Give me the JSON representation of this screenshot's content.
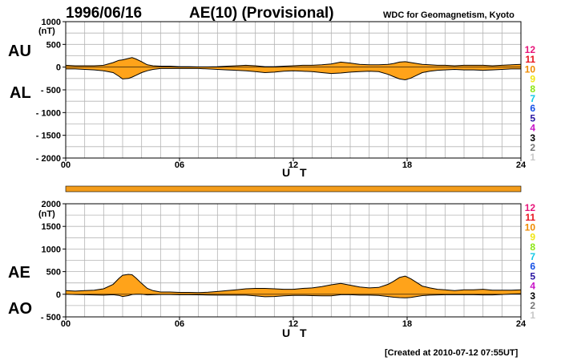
{
  "header": {
    "date": "1996/06/16",
    "title": "AE(10) (Provisional)",
    "source": "WDC for Geomagnetism, Kyoto"
  },
  "footer": {
    "created": "[Created at 2010-07-12 07:55UT]"
  },
  "colors": {
    "fill": "#ffa31a",
    "line": "#000000",
    "grid": "#b4b4b4",
    "bar": "#f39c1a"
  },
  "station_legend": [
    {
      "label": "12",
      "color": "#e8157a"
    },
    {
      "label": "11",
      "color": "#e8141e"
    },
    {
      "label": "10",
      "color": "#f08c00"
    },
    {
      "label": "9",
      "color": "#f0e614"
    },
    {
      "label": "8",
      "color": "#8ce614"
    },
    {
      "label": "7",
      "color": "#14c8e6"
    },
    {
      "label": "6",
      "color": "#1450e6"
    },
    {
      "label": "5",
      "color": "#2814a0"
    },
    {
      "label": "4",
      "color": "#c814c8"
    },
    {
      "label": "3",
      "color": "#000000"
    },
    {
      "label": "2",
      "color": "#787878"
    },
    {
      "label": "1",
      "color": "#c8c8c8"
    }
  ],
  "chart_data": [
    {
      "type": "area",
      "panel": "AU/AL",
      "labels": {
        "upper": "AU",
        "lower": "AL",
        "unit": "(nT)",
        "xlabel": "U T"
      },
      "ylim": [
        -2000,
        1000
      ],
      "yticks": [
        1000,
        500,
        0,
        -500,
        -1000,
        -1500,
        -2000
      ],
      "ytick_labels": [
        "1000",
        "500",
        "0",
        "- 500",
        "- 1000",
        "- 1500",
        "- 2000"
      ],
      "xlim": [
        0,
        24
      ],
      "xticks": [
        0,
        6,
        12,
        18,
        24
      ],
      "xtick_labels": [
        "00",
        "06",
        "12",
        "18",
        "24"
      ],
      "grid": true,
      "x": [
        0,
        0.5,
        1,
        1.5,
        2,
        2.5,
        2.8,
        3,
        3.3,
        3.5,
        3.7,
        4,
        4.3,
        4.6,
        5,
        5.5,
        6,
        6.5,
        7,
        7.5,
        8,
        8.5,
        9,
        9.5,
        10,
        10.5,
        11,
        11.5,
        12,
        12.5,
        13,
        13.5,
        14,
        14.5,
        15,
        15.5,
        16,
        16.5,
        17,
        17.3,
        17.6,
        17.9,
        18.2,
        18.5,
        18.8,
        19.2,
        19.6,
        20,
        20.5,
        21,
        21.5,
        22,
        22.5,
        23,
        23.5,
        24
      ],
      "series": [
        {
          "name": "AU",
          "values": [
            40,
            30,
            30,
            30,
            40,
            100,
            150,
            160,
            190,
            210,
            180,
            120,
            50,
            30,
            20,
            20,
            10,
            10,
            5,
            5,
            10,
            20,
            30,
            40,
            30,
            10,
            10,
            20,
            30,
            40,
            40,
            50,
            70,
            110,
            90,
            60,
            50,
            50,
            60,
            80,
            110,
            120,
            100,
            80,
            60,
            50,
            40,
            40,
            30,
            40,
            40,
            40,
            30,
            40,
            50,
            60
          ]
        },
        {
          "name": "AL",
          "values": [
            -40,
            -40,
            -50,
            -60,
            -80,
            -120,
            -200,
            -260,
            -250,
            -220,
            -180,
            -120,
            -80,
            -50,
            -30,
            -30,
            -30,
            -30,
            -30,
            -40,
            -50,
            -60,
            -70,
            -80,
            -100,
            -120,
            -110,
            -90,
            -80,
            -90,
            -100,
            -120,
            -140,
            -130,
            -110,
            -100,
            -90,
            -100,
            -160,
            -210,
            -260,
            -280,
            -240,
            -180,
            -120,
            -90,
            -70,
            -60,
            -50,
            -60,
            -60,
            -70,
            -60,
            -50,
            -40,
            -40
          ]
        }
      ]
    },
    {
      "type": "area",
      "panel": "AE/AO",
      "labels": {
        "upper": "AE",
        "lower": "AO",
        "unit": "(nT)",
        "xlabel": "U T"
      },
      "ylim": [
        -500,
        2000
      ],
      "yticks": [
        2000,
        1500,
        1000,
        500,
        0,
        -500
      ],
      "ytick_labels": [
        "2000",
        "1500",
        "1000",
        "500",
        "0",
        "- 500"
      ],
      "xlim": [
        0,
        24
      ],
      "xticks": [
        0,
        6,
        12,
        18,
        24
      ],
      "xtick_labels": [
        "00",
        "06",
        "12",
        "18",
        "24"
      ],
      "grid": true,
      "x": [
        0,
        0.5,
        1,
        1.5,
        2,
        2.5,
        2.8,
        3,
        3.3,
        3.5,
        3.7,
        4,
        4.3,
        4.6,
        5,
        5.5,
        6,
        6.5,
        7,
        7.5,
        8,
        8.5,
        9,
        9.5,
        10,
        10.5,
        11,
        11.5,
        12,
        12.5,
        13,
        13.5,
        14,
        14.5,
        15,
        15.5,
        16,
        16.5,
        17,
        17.3,
        17.6,
        17.9,
        18.2,
        18.5,
        18.8,
        19.2,
        19.6,
        20,
        20.5,
        21,
        21.5,
        22,
        22.5,
        23,
        23.5,
        24
      ],
      "series": [
        {
          "name": "AE",
          "values": [
            80,
            70,
            80,
            90,
            120,
            220,
            350,
            420,
            440,
            430,
            360,
            240,
            130,
            80,
            50,
            50,
            40,
            40,
            35,
            45,
            60,
            80,
            100,
            120,
            130,
            130,
            120,
            110,
            110,
            130,
            140,
            170,
            210,
            240,
            200,
            160,
            140,
            150,
            220,
            290,
            370,
            400,
            340,
            260,
            180,
            140,
            110,
            100,
            80,
            100,
            100,
            110,
            90,
            90,
            90,
            100
          ]
        },
        {
          "name": "AO",
          "values": [
            0,
            -5,
            -10,
            -15,
            -20,
            -10,
            -25,
            -50,
            -30,
            -5,
            0,
            0,
            -15,
            -10,
            -5,
            -5,
            -10,
            -10,
            -12,
            -17,
            -20,
            -20,
            -20,
            -20,
            -35,
            -55,
            -50,
            -35,
            -25,
            -25,
            -30,
            -35,
            -35,
            -10,
            -10,
            -20,
            -20,
            -25,
            -50,
            -65,
            -75,
            -80,
            -70,
            -50,
            -30,
            -20,
            -15,
            -10,
            -10,
            -10,
            -10,
            -15,
            -15,
            -5,
            5,
            10
          ]
        }
      ]
    }
  ]
}
